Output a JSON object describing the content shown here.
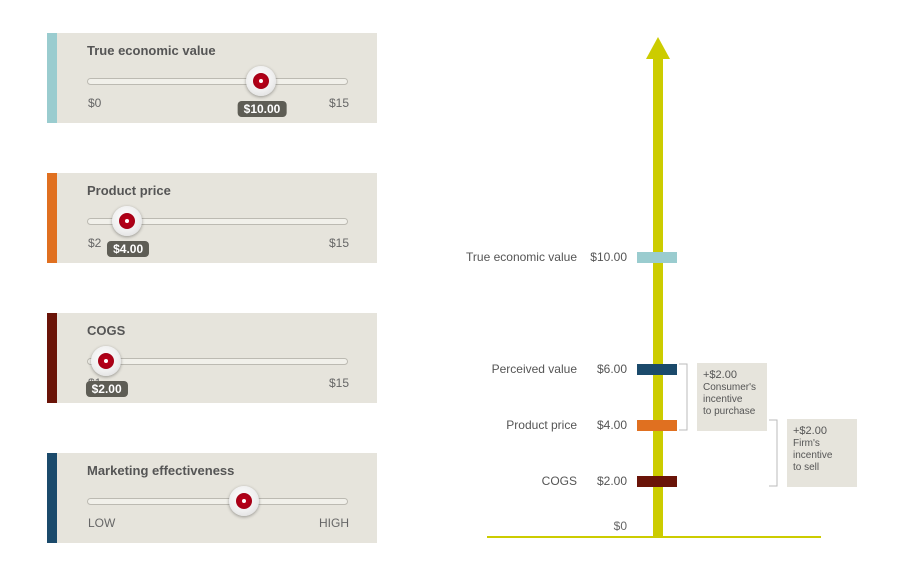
{
  "sliders": [
    {
      "title": "True economic value",
      "min_label": "$0",
      "max_label": "$15",
      "value_label": "$10.00",
      "value": 10,
      "min": 0,
      "max": 15,
      "color": "#9acccf"
    },
    {
      "title": "Product price",
      "min_label": "$2",
      "max_label": "$15",
      "value_label": "$4.00",
      "value": 4,
      "min": 2,
      "max": 15,
      "color": "#e07020"
    },
    {
      "title": "COGS",
      "min_label": "$1",
      "max_label": "$15",
      "value_label": "$2.00",
      "value": 2,
      "min": 1,
      "max": 15,
      "color": "#6a1408"
    },
    {
      "title": "Marketing effectiveness",
      "min_label": "LOW",
      "max_label": "HIGH",
      "value_label": "",
      "value": 0.6,
      "min": 0,
      "max": 1,
      "color": "#1b4a6b"
    }
  ],
  "chart_data": {
    "type": "bar",
    "ylim": [
      0,
      16
    ],
    "markers": [
      {
        "label": "True economic value",
        "value": 10.0,
        "value_label": "$10.00",
        "color": "#9acccf"
      },
      {
        "label": "Perceived value",
        "value": 6.0,
        "value_label": "$6.00",
        "color": "#1b4a6b"
      },
      {
        "label": "Product price",
        "value": 4.0,
        "value_label": "$4.00",
        "color": "#e07020"
      },
      {
        "label": "COGS",
        "value": 2.0,
        "value_label": "$2.00",
        "color": "#6a1408"
      }
    ],
    "zero_label": "$0",
    "axis_color": "#cccc00",
    "annotations": [
      {
        "from": 4.0,
        "to": 6.0,
        "lines": [
          "+$2.00",
          "Consumer's",
          "incentive",
          "to purchase"
        ]
      },
      {
        "from": 2.0,
        "to": 4.0,
        "lines": [
          "+$2.00",
          "Firm's",
          "incentive",
          "to sell"
        ]
      }
    ]
  }
}
